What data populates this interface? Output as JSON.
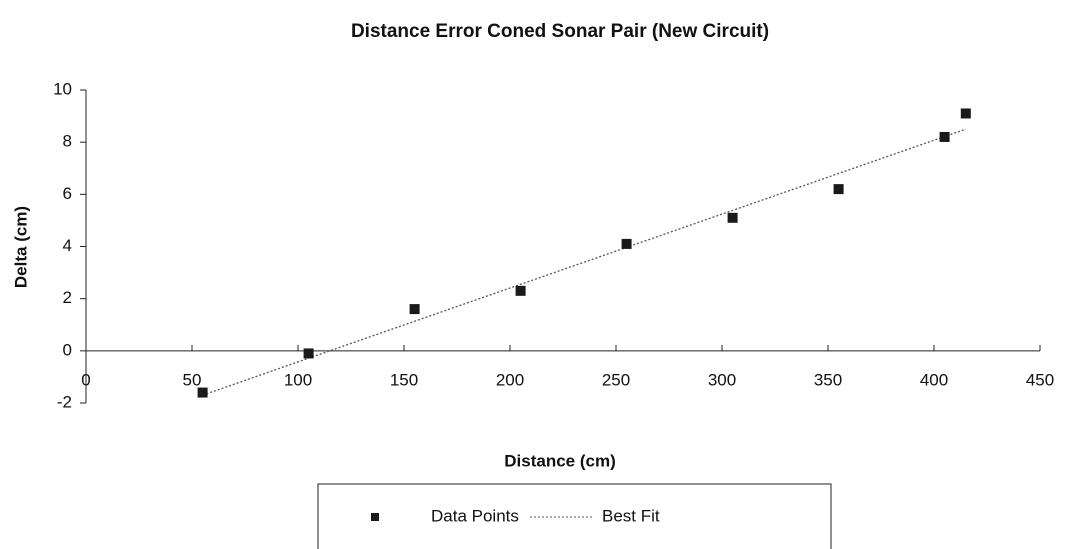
{
  "chart_data": {
    "type": "scatter",
    "title": "Distance Error Coned Sonar Pair (New Circuit)",
    "x_label": "Distance (cm)",
    "y_label": "Delta (cm)",
    "series": [
      {
        "name": "Data Points",
        "color": "#1a1a1a",
        "kind": "scatter",
        "x": [
          55,
          105,
          155,
          205,
          255,
          305,
          355,
          405,
          415
        ],
        "values": [
          -1.6,
          -0.1,
          1.6,
          2.3,
          4.1,
          5.1,
          6.2,
          8.2,
          9.1
        ]
      },
      {
        "name": "Best Fit",
        "color": "#555555",
        "kind": "line",
        "dash": true,
        "x": [
          55,
          415
        ],
        "values": [
          -1.7,
          8.5
        ]
      }
    ],
    "xlim": [
      0,
      450
    ],
    "xticks": [
      0,
      50,
      100,
      150,
      200,
      250,
      300,
      350,
      400,
      450
    ],
    "ylim": [
      -2,
      10
    ],
    "yticks": [
      -2,
      0,
      2,
      4,
      6,
      8,
      10
    ],
    "grid": false,
    "legend": "bottom"
  }
}
